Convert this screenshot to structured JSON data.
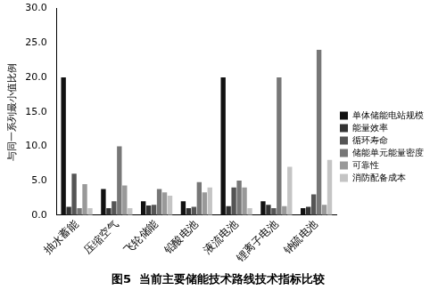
{
  "chart_data": {
    "type": "bar",
    "title": "图5  当前主要储能技术路线技术指标比较",
    "y_label": "与同一系列最小值比例",
    "categories": [
      "抽水蓄能",
      "压缩空气",
      "飞轮储能",
      "铅酸电池",
      "液流电池",
      "锂离子电池",
      "钠硫电池"
    ],
    "series": [
      {
        "name": "单体储能电站规模",
        "color": "#111111",
        "values": [
          20.0,
          3.8,
          2.0,
          2.0,
          20.0,
          2.0,
          1.0
        ]
      },
      {
        "name": "能量效率",
        "color": "#333333",
        "values": [
          1.2,
          1.0,
          1.4,
          1.0,
          1.3,
          1.5,
          1.2
        ]
      },
      {
        "name": "循环寿命",
        "color": "#555555",
        "values": [
          6.0,
          2.0,
          1.5,
          1.2,
          4.0,
          1.0,
          3.0
        ]
      },
      {
        "name": "储能单元能量密度",
        "color": "#777777",
        "values": [
          1.0,
          10.0,
          3.8,
          4.8,
          5.0,
          20.0,
          24.0
        ]
      },
      {
        "name": "可靠性",
        "color": "#999999",
        "values": [
          4.5,
          4.3,
          3.3,
          3.3,
          4.0,
          1.3,
          1.5
        ]
      },
      {
        "name": "消防配备成本",
        "color": "#c4c4c4",
        "values": [
          1.0,
          1.0,
          2.8,
          4.0,
          1.0,
          7.0,
          8.0
        ]
      }
    ],
    "ylim": [
      0,
      30
    ],
    "yticks": [
      {
        "value": 0,
        "label": "0.0"
      },
      {
        "value": 5,
        "label": "5.0"
      },
      {
        "value": 10,
        "label": "10.0"
      },
      {
        "value": 15,
        "label": "15.0"
      },
      {
        "value": 20,
        "label": "20.0"
      },
      {
        "value": 25,
        "label": "25.0"
      },
      {
        "value": 30,
        "label": "30.0"
      }
    ],
    "grid": false,
    "legend": "right"
  }
}
